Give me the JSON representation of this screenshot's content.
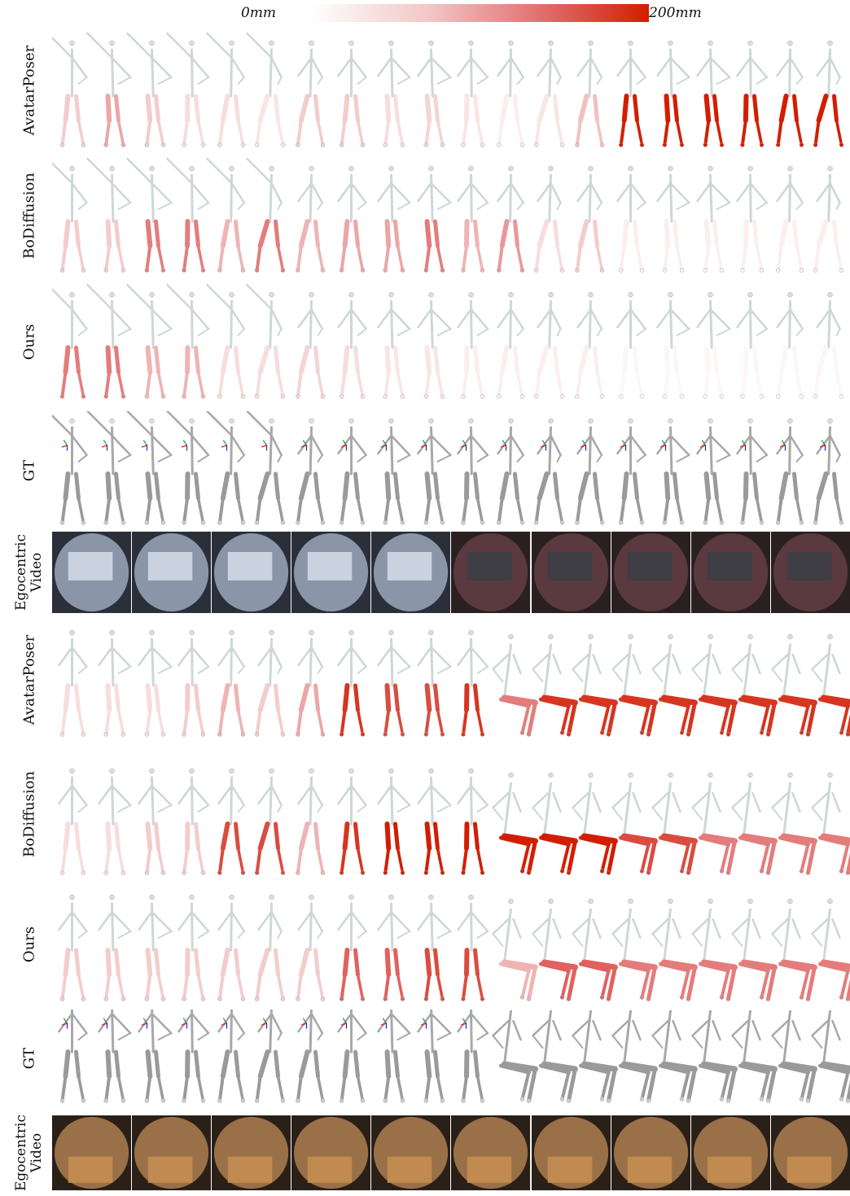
{
  "colorbar": {
    "min_label": "0mm",
    "max_label": "200mm",
    "colors": [
      "#ffffff",
      "#f2c6c6",
      "#e06a6a",
      "#d21e00"
    ]
  },
  "rows": [
    {
      "label": "AvatarPoser",
      "kind": "skeleton",
      "pose": "stand",
      "error": [
        0.3,
        0.45,
        0.3,
        0.2,
        0.2,
        0.15,
        0.3,
        0.3,
        0.2,
        0.25,
        0.15,
        0.1,
        0.15,
        0.35,
        1.0,
        1.0,
        1.0,
        1.0,
        1.0,
        1.0
      ]
    },
    {
      "label": "BoDiffusion",
      "kind": "skeleton",
      "pose": "stand",
      "error": [
        0.3,
        0.3,
        0.6,
        0.6,
        0.4,
        0.6,
        0.4,
        0.45,
        0.45,
        0.6,
        0.4,
        0.5,
        0.2,
        0.3,
        0.1,
        0.1,
        0.1,
        0.1,
        0.1,
        0.1
      ]
    },
    {
      "label": "Ours",
      "kind": "skeleton",
      "pose": "stand",
      "error": [
        0.6,
        0.6,
        0.4,
        0.4,
        0.2,
        0.2,
        0.25,
        0.2,
        0.15,
        0.15,
        0.1,
        0.1,
        0.1,
        0.1,
        0.05,
        0.05,
        0.05,
        0.05,
        0.05,
        0.05
      ]
    },
    {
      "label": "GT",
      "kind": "skeleton-gt",
      "pose": "stand",
      "error": []
    },
    {
      "label": "Egocentric Video",
      "kind": "video",
      "scene": "kitchen",
      "frames": 10
    },
    {
      "label": "AvatarPoser",
      "kind": "skeleton",
      "pose": "sit",
      "error": [
        0.2,
        0.2,
        0.2,
        0.3,
        0.4,
        0.3,
        0.45,
        0.9,
        0.8,
        0.8,
        0.9,
        0.6,
        0.9,
        0.9,
        0.9,
        0.9,
        0.9,
        0.9,
        0.9,
        0.9
      ]
    },
    {
      "label": "BoDiffusion",
      "kind": "skeleton",
      "pose": "sit",
      "error": [
        0.2,
        0.2,
        0.3,
        0.3,
        0.8,
        0.8,
        0.4,
        0.9,
        1.0,
        1.0,
        1.0,
        1.0,
        1.0,
        1.0,
        0.8,
        0.8,
        0.6,
        0.6,
        0.6,
        0.6
      ]
    },
    {
      "label": "Ours",
      "kind": "skeleton",
      "pose": "sit",
      "error": [
        0.3,
        0.3,
        0.3,
        0.3,
        0.3,
        0.3,
        0.3,
        0.7,
        0.7,
        0.8,
        0.8,
        0.4,
        0.7,
        0.7,
        0.6,
        0.6,
        0.6,
        0.6,
        0.6,
        0.6
      ]
    },
    {
      "label": "GT",
      "kind": "skeleton-gt",
      "pose": "sit",
      "error": []
    },
    {
      "label": "Egocentric Video",
      "kind": "video",
      "scene": "dining",
      "frames": 10
    }
  ]
}
